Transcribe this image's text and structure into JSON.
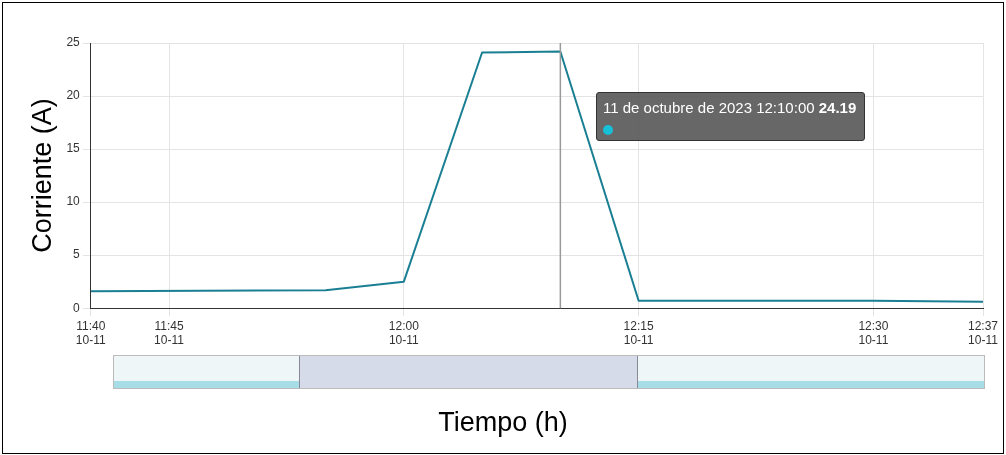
{
  "chart_data": {
    "type": "line",
    "xlabel": "Tiempo (h)",
    "ylabel": "Corriente (A)",
    "x": [
      "2023-10-11T11:40",
      "2023-10-11T11:55",
      "2023-10-11T12:00",
      "2023-10-11T12:05",
      "2023-10-11T12:10",
      "2023-10-11T12:15",
      "2023-10-11T12:30",
      "2023-10-11T12:37"
    ],
    "series": [
      {
        "color": "#1a7f93",
        "values": [
          1.6,
          1.7,
          2.5,
          24.1,
          24.2,
          0.7,
          0.7,
          0.6
        ]
      }
    ],
    "xlim": [
      "2023-10-11T11:40",
      "2023-10-11T12:37"
    ],
    "xticks": [
      {
        "value": "2023-10-11T11:40",
        "label": "11:40 10-11"
      },
      {
        "value": "2023-10-11T11:45",
        "label": "11:45 10-11"
      },
      {
        "value": "2023-10-11T12:00",
        "label": "12:00 10-11"
      },
      {
        "value": "2023-10-11T12:15",
        "label": "12:15 10-11"
      },
      {
        "value": "2023-10-11T12:30",
        "label": "12:30 10-11"
      },
      {
        "value": "2023-10-11T12:37",
        "label": "12:37 10-11"
      }
    ],
    "ylim": [
      0,
      25
    ],
    "yticks": [
      0,
      5,
      10,
      15,
      20,
      25
    ],
    "grid": true,
    "legend": false,
    "marker": "none",
    "line_style": "solid",
    "ref_lines": [
      {
        "axis": "x",
        "value": "2023-10-11T12:10",
        "color": "#999999"
      }
    ],
    "annotations": [
      "11 de octubre de 2023 12:10:00 24.19"
    ]
  }
}
